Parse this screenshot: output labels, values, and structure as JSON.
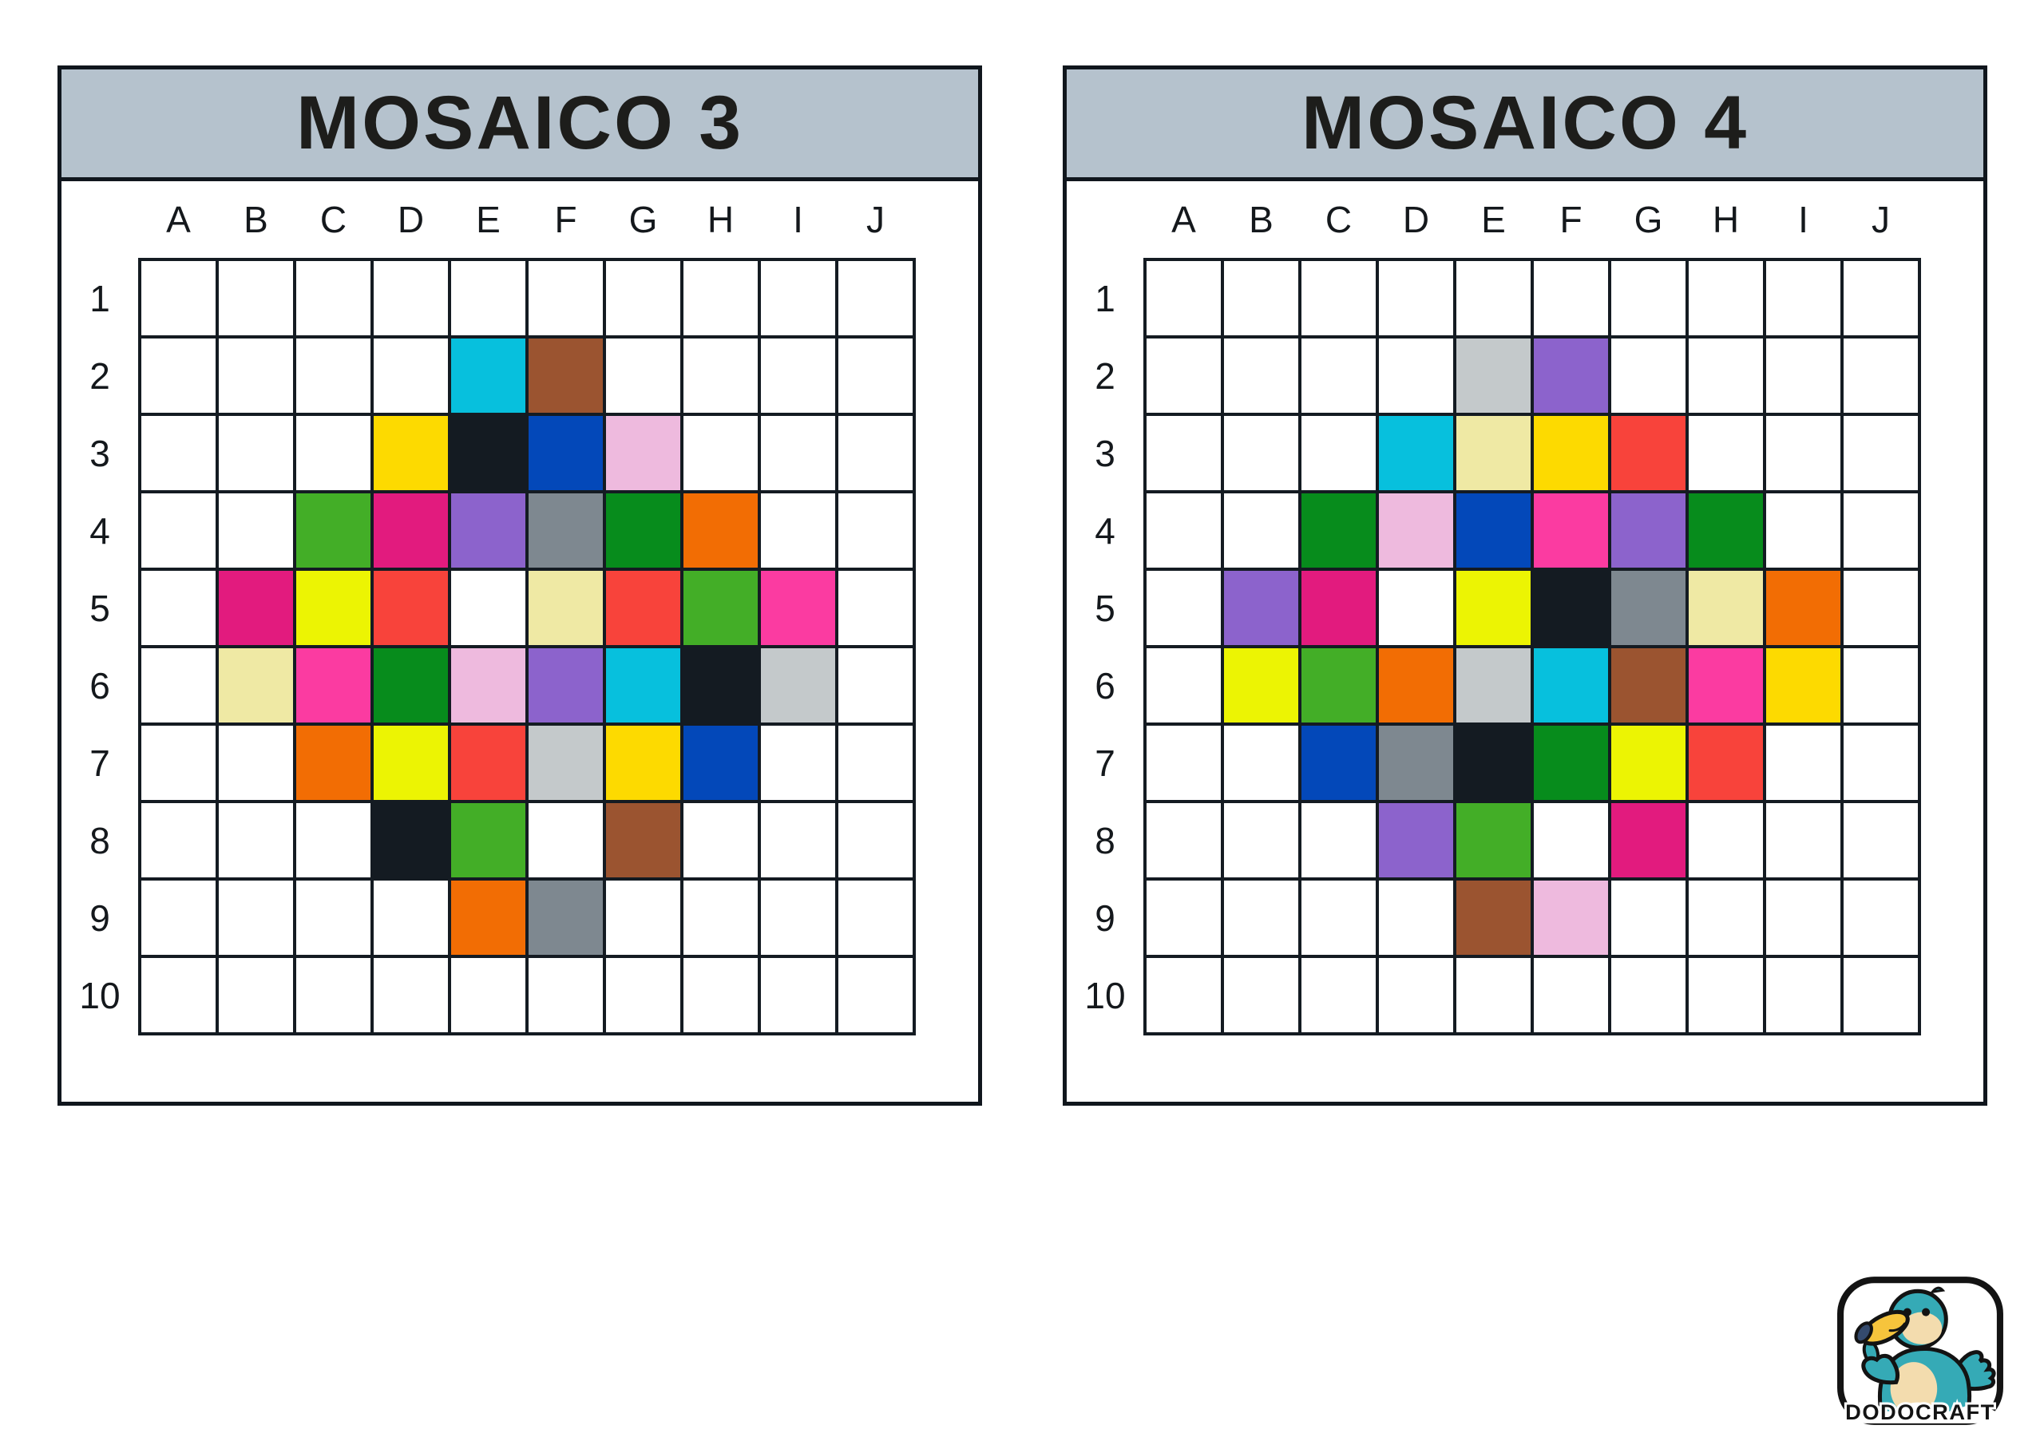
{
  "page": {
    "background": "#ffffff"
  },
  "colors": {
    "page_bg": "#ffffff",
    "panel_border": "#10161d",
    "grid_line": "#141b22",
    "header_bg": "#b5c2cd",
    "title_color": "#1d1d1b",
    "label_color": "#14181c"
  },
  "palette": {
    "white": "#ffffff",
    "cyan": "#07c0dd",
    "brown": "#9b5430",
    "gold": "#fdda00",
    "black": "#141b22",
    "blue": "#0348b9",
    "pink_light": "#eebade",
    "green": "#43ae27",
    "magenta": "#e21b7e",
    "purple": "#8c63cc",
    "gray_slate": "#7e8890",
    "green_dark": "#078c1c",
    "orange": "#f26d04",
    "yellow": "#ecf403",
    "red": "#f8433b",
    "khaki": "#efe9a4",
    "pink_hot": "#fb3ba1",
    "silver": "#c4c9cb"
  },
  "mosaics": [
    {
      "title": "MOSAICO 3",
      "columns": [
        "A",
        "B",
        "C",
        "D",
        "E",
        "F",
        "G",
        "H",
        "I",
        "J"
      ],
      "rows": [
        "1",
        "2",
        "3",
        "4",
        "5",
        "6",
        "7",
        "8",
        "9",
        "10"
      ],
      "cells": {
        "E2": "cyan",
        "F2": "brown",
        "D3": "gold",
        "E3": "black",
        "F3": "blue",
        "G3": "pink_light",
        "C4": "green",
        "D4": "magenta",
        "E4": "purple",
        "F4": "gray_slate",
        "G4": "green_dark",
        "H4": "orange",
        "B5": "magenta",
        "C5": "yellow",
        "D5": "red",
        "F5": "khaki",
        "G5": "red",
        "H5": "green",
        "I5": "pink_hot",
        "B6": "khaki",
        "C6": "pink_hot",
        "D6": "green_dark",
        "E6": "pink_light",
        "F6": "purple",
        "G6": "cyan",
        "H6": "black",
        "I6": "silver",
        "C7": "orange",
        "D7": "yellow",
        "E7": "red",
        "F7": "silver",
        "G7": "gold",
        "H7": "blue",
        "D8": "black",
        "E8": "green",
        "G8": "brown",
        "E9": "orange",
        "F9": "gray_slate"
      }
    },
    {
      "title": "MOSAICO 4",
      "columns": [
        "A",
        "B",
        "C",
        "D",
        "E",
        "F",
        "G",
        "H",
        "I",
        "J"
      ],
      "rows": [
        "1",
        "2",
        "3",
        "4",
        "5",
        "6",
        "7",
        "8",
        "9",
        "10"
      ],
      "cells": {
        "E2": "silver",
        "F2": "purple",
        "D3": "cyan",
        "E3": "khaki",
        "F3": "gold",
        "G3": "red",
        "C4": "green_dark",
        "D4": "pink_light",
        "E4": "blue",
        "F4": "pink_hot",
        "G4": "purple",
        "H4": "green_dark",
        "B5": "purple",
        "C5": "magenta",
        "E5": "yellow",
        "F5": "black",
        "G5": "gray_slate",
        "H5": "khaki",
        "I5": "orange",
        "B6": "yellow",
        "C6": "green",
        "D6": "orange",
        "E6": "silver",
        "F6": "cyan",
        "G6": "brown",
        "H6": "pink_hot",
        "I6": "gold",
        "C7": "blue",
        "D7": "gray_slate",
        "E7": "black",
        "F7": "green_dark",
        "G7": "yellow",
        "H7": "red",
        "D8": "purple",
        "E8": "green",
        "G8": "magenta",
        "E9": "brown",
        "F9": "pink_light"
      }
    }
  ],
  "logo": {
    "text": "DODOCRAFT",
    "teal": "#35aab6",
    "cream": "#f3dcae",
    "beak_yellow": "#f6c43c",
    "beak_tip": "#344a6d",
    "outline": "#131313"
  }
}
